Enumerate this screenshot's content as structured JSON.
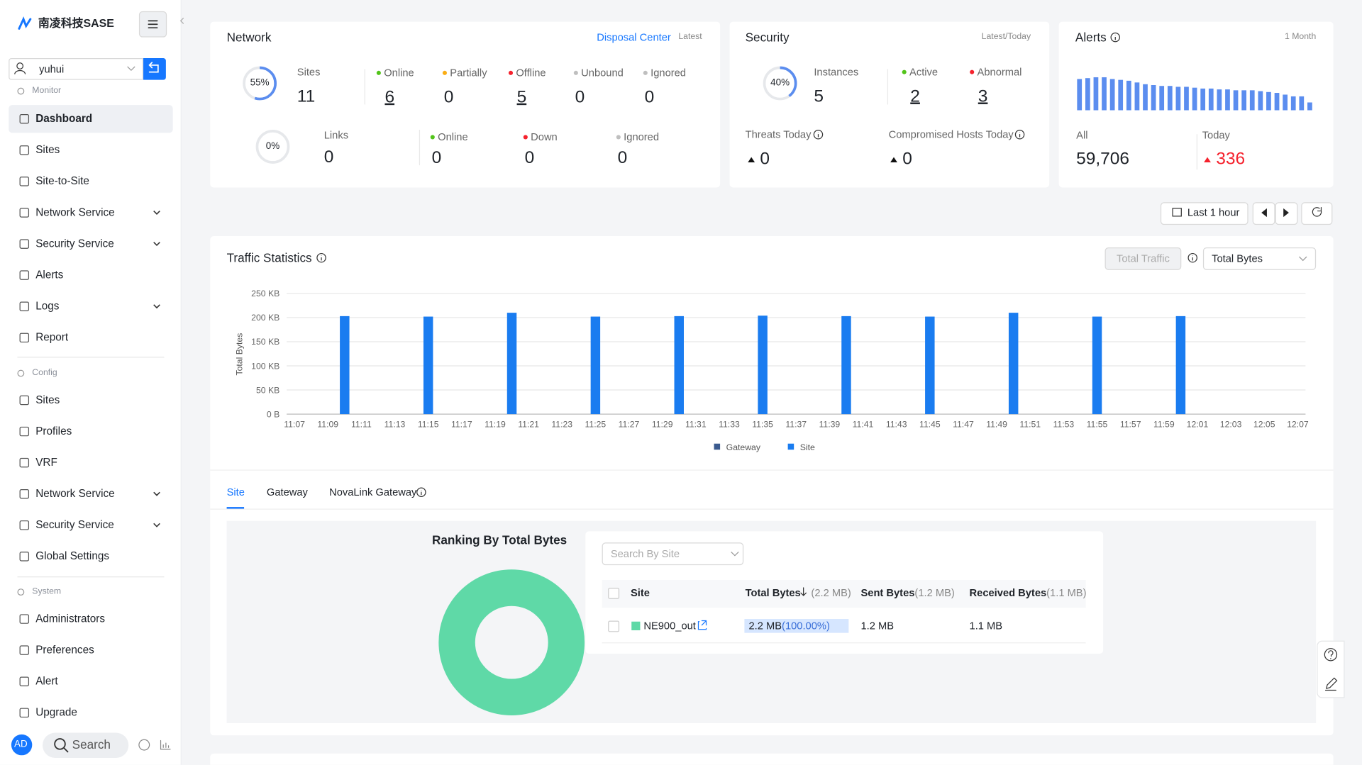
{
  "sidebar": {
    "brand": "南凌科技SASE",
    "user": "yuhui",
    "groups": [
      {
        "title": "Monitor",
        "items": [
          {
            "label": "Dashboard",
            "active": true
          },
          {
            "label": "Sites"
          },
          {
            "label": "Site-to-Site"
          },
          {
            "label": "Network Service",
            "expand": true
          },
          {
            "label": "Security Service",
            "expand": true
          },
          {
            "label": "Alerts"
          },
          {
            "label": "Logs",
            "expand": true
          },
          {
            "label": "Report"
          }
        ]
      },
      {
        "title": "Config",
        "items": [
          {
            "label": "Sites"
          },
          {
            "label": "Profiles"
          },
          {
            "label": "VRF"
          },
          {
            "label": "Network Service",
            "expand": true
          },
          {
            "label": "Security Service",
            "expand": true
          },
          {
            "label": "Global Settings"
          }
        ]
      },
      {
        "title": "System",
        "items": [
          {
            "label": "Administrators"
          },
          {
            "label": "Preferences"
          },
          {
            "label": "Alert"
          },
          {
            "label": "Upgrade"
          }
        ]
      }
    ],
    "avatar": "AD",
    "search": "Search"
  },
  "network": {
    "title": "Network",
    "link": "Disposal Center",
    "scope": "Latest",
    "sites": {
      "ring": 55,
      "ring_label": "55%",
      "label": "Sites",
      "count": 11,
      "statuses": [
        {
          "name": "Online",
          "count": 6,
          "color": "#52c41a",
          "link": true
        },
        {
          "name": "Partially",
          "count": 0,
          "color": "#faad14"
        },
        {
          "name": "Offline",
          "count": 5,
          "color": "#f5222d",
          "link": true
        },
        {
          "name": "Unbound",
          "count": 0,
          "color": "#bfbfbf"
        },
        {
          "name": "Ignored",
          "count": 0,
          "color": "#bfbfbf"
        }
      ]
    },
    "links": {
      "ring": 0,
      "ring_label": "0%",
      "label": "Links",
      "count": 0,
      "statuses": [
        {
          "name": "Online",
          "count": 0,
          "color": "#52c41a"
        },
        {
          "name": "Down",
          "count": 0,
          "color": "#f5222d"
        },
        {
          "name": "Ignored",
          "count": 0,
          "color": "#bfbfbf"
        }
      ]
    }
  },
  "security": {
    "title": "Security",
    "scope": "Latest/Today",
    "instances": {
      "ring": 40,
      "ring_label": "40%",
      "label": "Instances",
      "count": 5,
      "statuses": [
        {
          "name": "Active",
          "count": 2,
          "color": "#52c41a",
          "link": true
        },
        {
          "name": "Abnormal",
          "count": 3,
          "color": "#f5222d",
          "link": true
        }
      ]
    },
    "threats": {
      "label": "Threats Today",
      "count": 0
    },
    "compromised": {
      "label": "Compromised Hosts Today",
      "count": 0
    }
  },
  "alerts": {
    "title": "Alerts",
    "period": "1 Month",
    "all_label": "All",
    "all": "59,706",
    "today_label": "Today",
    "today": 336
  },
  "controls": {
    "range": "Last 1 hour"
  },
  "traffic": {
    "total_traffic": "Total Traffic",
    "metric": "Total Bytes",
    "tabs": [
      {
        "label": "Site",
        "active": true
      },
      {
        "label": "Gateway"
      },
      {
        "label": "NovaLink Gateway"
      }
    ],
    "search": "Search By Site",
    "table": {
      "columns": [
        {
          "label": "Site"
        },
        {
          "label": "Total Bytes",
          "total": "(2.2 MB)"
        },
        {
          "label": "Sent Bytes",
          "total": "(1.2 MB)"
        },
        {
          "label": "Received Bytes",
          "total": "(1.1 MB)"
        }
      ],
      "rows": [
        {
          "site": "NE900_out",
          "total": "2.2 MB",
          "share": "(100.00%)",
          "sent": "1.2 MB",
          "received": "1.1 MB"
        }
      ]
    }
  },
  "chart_data": [
    {
      "type": "bar",
      "color": "#5b8def",
      "ylim": [
        0,
        40
      ],
      "values": [
        36,
        37,
        38,
        38,
        36,
        35,
        34,
        32,
        30,
        29,
        28,
        28,
        27,
        27,
        26,
        25,
        25,
        24,
        24,
        23,
        23,
        23,
        22,
        21,
        20,
        18,
        16,
        16,
        9
      ]
    },
    {
      "type": "bar",
      "title": "Traffic Statistics",
      "y_label": "Total Bytes",
      "grid": true,
      "legend": "bottom",
      "ylim": [
        0,
        250
      ],
      "yticks": [
        {
          "value": 0,
          "label": "0 B"
        },
        {
          "value": 50,
          "label": "50 KB"
        },
        {
          "value": 100,
          "label": "100 KB"
        },
        {
          "value": 150,
          "label": "150 KB"
        },
        {
          "value": 200,
          "label": "200 KB"
        },
        {
          "value": 250,
          "label": "250 KB"
        }
      ],
      "categories": [
        "11:07",
        null,
        "11:09",
        null,
        "11:11",
        null,
        "11:13",
        null,
        "11:15",
        null,
        "11:17",
        null,
        "11:19",
        null,
        "11:21",
        null,
        "11:23",
        null,
        "11:25",
        null,
        "11:27",
        null,
        "11:29",
        null,
        "11:31",
        null,
        "11:33",
        null,
        "11:35",
        null,
        "11:37",
        null,
        "11:39",
        null,
        "11:41",
        null,
        "11:43",
        null,
        "11:45",
        null,
        "11:47",
        null,
        "11:49",
        null,
        "11:51",
        null,
        "11:53",
        null,
        "11:55",
        null,
        "11:57",
        null,
        "11:59",
        null,
        "12:01",
        null,
        "12:03",
        null,
        "12:05",
        null,
        "12:07"
      ],
      "series": [
        {
          "name": "Gateway",
          "color": "#3b5b8f",
          "values": [
            null,
            null,
            null,
            0,
            null,
            null,
            null,
            null,
            0,
            null,
            null,
            null,
            null,
            0,
            null,
            null,
            null,
            null,
            0,
            null,
            null,
            null,
            null,
            0,
            null,
            null,
            null,
            null,
            0,
            null,
            null,
            null,
            null,
            0,
            null,
            null,
            null,
            null,
            0,
            null,
            null,
            null,
            null,
            0,
            null,
            null,
            null,
            null,
            0,
            null,
            null,
            null,
            null,
            0,
            null,
            null,
            null,
            null,
            null,
            null,
            null
          ]
        },
        {
          "name": "Site",
          "color": "#1a7cf0",
          "values": [
            null,
            null,
            null,
            203,
            null,
            null,
            null,
            null,
            202,
            null,
            null,
            null,
            null,
            210,
            null,
            null,
            null,
            null,
            202,
            null,
            null,
            null,
            null,
            203,
            null,
            null,
            null,
            null,
            204,
            null,
            null,
            null,
            null,
            203,
            null,
            null,
            null,
            null,
            202,
            null,
            null,
            null,
            null,
            210,
            null,
            null,
            null,
            null,
            202,
            null,
            null,
            null,
            null,
            203,
            null,
            null,
            null,
            null,
            null,
            null,
            null
          ]
        }
      ]
    },
    {
      "type": "pie",
      "title": "Ranking By Total Bytes",
      "donut": true,
      "values": [
        100
      ],
      "colors": [
        "#5fd9a7"
      ]
    }
  ]
}
